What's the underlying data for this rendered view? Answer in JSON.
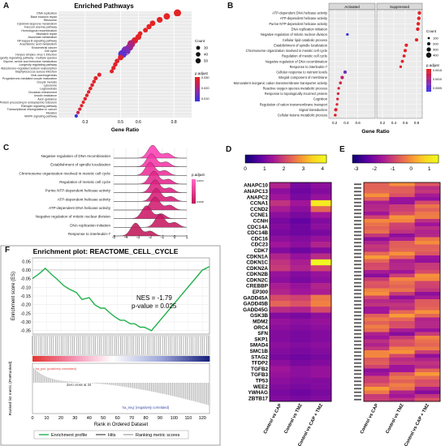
{
  "panels": {
    "A": {
      "letter": "A",
      "title": "Enriched Pathways",
      "xlabel": "Gene Ratio",
      "size_legend_title": "Count",
      "color_legend_title": "p.adjust"
    },
    "B": {
      "letter": "B",
      "header_left": "Activated",
      "header_right": "Suppressed",
      "xlabel": "Gene Ratio",
      "size_legend_title": "Count",
      "color_legend_title": "p.adjust"
    },
    "C": {
      "letter": "C",
      "color_legend_title": "p.adjust"
    },
    "D": {
      "letter": "D"
    },
    "E": {
      "letter": "E"
    },
    "F": {
      "letter": "F",
      "title": "Enrichment plot: REACTOME_CELL_CYCLE",
      "ylabel_top": "Enrichment score (ES)",
      "ylabel_bottom": "Ranked list metric (PreRanked)",
      "xlabel": "Rank in Ordered Dataset",
      "nes": "NES = -1.79",
      "pvalue": "p-value = 0.025",
      "pos_label": "'na_pos' (positively correlated)",
      "neg_label": "'na_neg' (negatively correlated)",
      "zero_cross": "Zero cross at 34",
      "legend": [
        "Enrichment profile",
        "Hits",
        "Ranking metric scores"
      ]
    }
  },
  "chart_data": [
    {
      "panel": "A",
      "type": "scatter",
      "title": "Enriched Pathways",
      "xlabel": "Gene Ratio",
      "xticks": [
        0.3,
        0.5,
        0.6,
        0.8
      ],
      "xlim": [
        0.15,
        0.9
      ],
      "categories": [
        "DNA replication",
        "Base excision repair",
        "Ribosome",
        "Cytokinin-isoprene metabolism",
        "Fanconi anemia pathway",
        "Homologous recombination",
        "Mismatch repair",
        "Ascorbate metabolism",
        "NF-kappa B signaling pathway",
        "Arachidonic acid metabolism",
        "Endometrial cancer",
        "Cell cycle",
        "Herpes simplex virus 1 infection",
        "Longevity regulating pathway - multiple species",
        "Glycine, serine and threonine metabolism",
        "Longevity regulating pathway",
        "Aldosterone-regulated sodium reabsorption",
        "Staphylococcus aureus infection",
        "Viral carcinogenesis",
        "Progesterone-mediated oocyte maturation",
        "Oocyte meiosis",
        "Lysosome",
        "Legionellosis",
        "Circadian entrainment",
        "Insulin resistance",
        "Axon guidance",
        "Protein processing in endoplasmic reticulum",
        "Estrogen signaling pathway",
        "Transcriptional misregulation in cancer",
        "Measles",
        "MAPK signaling pathway"
      ],
      "x": [
        0.82,
        0.76,
        0.72,
        0.68,
        0.66,
        0.64,
        0.61,
        0.6,
        0.58,
        0.56,
        0.55,
        0.53,
        0.51,
        0.5,
        0.48,
        0.47,
        0.46,
        0.45,
        0.38,
        0.36,
        0.35,
        0.34,
        0.33,
        0.32,
        0.31,
        0.3,
        0.29,
        0.28,
        0.27,
        0.26,
        0.25
      ],
      "count": [
        30,
        25,
        22,
        20,
        18,
        16,
        15,
        22,
        25,
        32,
        30,
        40,
        36,
        20,
        15,
        14,
        13,
        12,
        12,
        12,
        10,
        10,
        10,
        9,
        9,
        9,
        8,
        8,
        8,
        8,
        8
      ],
      "p_adjust": [
        0.001,
        0.001,
        0.001,
        0.001,
        0.001,
        0.001,
        0.001,
        0.001,
        0.002,
        0.012,
        0.015,
        0.02,
        0.025,
        0.002,
        0.002,
        0.002,
        0.002,
        0.002,
        0.002,
        0.002,
        0.002,
        0.002,
        0.002,
        0.002,
        0.002,
        0.002,
        0.002,
        0.002,
        0.002,
        0.008,
        0.03
      ],
      "size_legend": [
        30,
        40,
        50
      ],
      "color_legend": [
        "0.030",
        "0.020",
        "0.010"
      ]
    },
    {
      "panel": "B",
      "type": "scatter",
      "xlabel": "Gene Ratio",
      "facets": [
        "Activated",
        "Suppressed"
      ],
      "xticks_activated": [
        0.2,
        0.4,
        0.6
      ],
      "xticks_suppressed": [
        0.2,
        0.4,
        0.6,
        0.8
      ],
      "xlim": [
        0.1,
        0.9
      ],
      "categories": [
        "ATP-dependent DNA helicase activity",
        "ATP-dependent helicase activity",
        "Purine NTP-dependent helicase activity",
        "DNA replication initiation",
        "Negative regulation of mitotic nuclear division",
        "Cellular lipid catabolic process",
        "Establishment of spindle localization",
        "Chromosome organization involved in meiotic cell cycle",
        "Regulation of meiotic cell cycle",
        "Negative regulation of DNA recombination",
        "Response to interleukin-7",
        "Cellular response to nutrient levels",
        "Integral component of membrane",
        "Monovalent inorganic cation transmembrane transporter activity",
        "Reactive oxygen species metabolic process",
        "Response to topologically incorrect protein",
        "Cognition",
        "Regulation of cation transmembrane transport",
        "Signal transduction",
        "Cellular ketone metabolic process"
      ],
      "facet": [
        "Suppressed",
        "Suppressed",
        "Suppressed",
        "Suppressed",
        "Activated",
        "Suppressed",
        "Suppressed",
        "Suppressed",
        "Suppressed",
        "Suppressed",
        "Suppressed",
        "Activated",
        "Activated",
        "Activated",
        "Activated",
        "Activated",
        "Activated",
        "Activated",
        "Activated",
        "Activated"
      ],
      "x": [
        0.85,
        0.84,
        0.83,
        0.82,
        0.42,
        0.8,
        0.62,
        0.6,
        0.58,
        0.55,
        0.52,
        0.38,
        0.33,
        0.3,
        0.27,
        0.26,
        0.25,
        0.24,
        0.22,
        0.21
      ],
      "count": [
        100,
        100,
        100,
        100,
        60,
        90,
        90,
        90,
        80,
        80,
        60,
        90,
        90,
        70,
        60,
        60,
        60,
        60,
        90,
        70
      ],
      "p_adjust": [
        0.001,
        0.001,
        0.001,
        0.002,
        0.03,
        0.001,
        0.001,
        0.001,
        0.002,
        0.002,
        0.003,
        0.022,
        0.01,
        0.005,
        0.004,
        0.004,
        0.003,
        0.003,
        0.002,
        0.002
      ],
      "size_legend": [
        100,
        200,
        300,
        400
      ],
      "color_legend": [
        "0.0015",
        "0.0010",
        "0.0005"
      ]
    },
    {
      "panel": "C",
      "type": "area",
      "categories": [
        "Negative regulation of DNA recombination",
        "Establishment of spindle localization",
        "Chromosome organization involved in meiotic cell cycle",
        "Regulation of meiotic cell cycle",
        "Purine NTP-dependent helicase activity",
        "ATP-dependent helicase activity",
        "ATP-dependent DNA helicase activity",
        "Negative regulation of mitotic nuclear division",
        "DNA replication initiation",
        "Response to interleukin-7"
      ],
      "peak_x": [
        -1.8,
        -1.9,
        -2.0,
        -1.7,
        -1.6,
        -1.5,
        -1.6,
        -2.3,
        -1.2,
        -3.2
      ],
      "xticks": [
        -5,
        -4,
        -3,
        -2,
        -1,
        0,
        1
      ],
      "xlim": [
        -5,
        1
      ],
      "color_legend": [
        "0.0074",
        "0.0018"
      ]
    },
    {
      "panel": "D",
      "type": "heatmap",
      "columns": [
        "Control vs CAP",
        "Control vs TMZ",
        "Control vs CAP + TMZ"
      ],
      "colorbar_ticks": [
        0,
        1,
        2,
        3,
        4
      ],
      "colorbar_range": [
        0,
        4.2
      ],
      "rows": [
        "ANAPC10",
        "ANAPC13",
        "ANAPC2",
        "CCNA1",
        "CCND2",
        "CCNE1",
        "CCNH",
        "CDC14A",
        "CDC14B",
        "CDC16",
        "CDC23",
        "CDK7",
        "CDKN1A",
        "CDKN1C",
        "CDKN2A",
        "CDKN2B",
        "CDKN2C",
        "CREBBP",
        "EP300",
        "GADD45A",
        "GADD45B",
        "GADD45G",
        "GSK3B",
        "MDM2",
        "ORC4",
        "SFN",
        "SKP1",
        "SMAD4",
        "SMC1B",
        "STAG2",
        "TFDP2",
        "TGFB2",
        "TGFB3",
        "TP53",
        "WEE2",
        "YWHAG",
        "ZBTB17"
      ],
      "values": [
        [
          1.6,
          1.0,
          1.2
        ],
        [
          1.2,
          0.9,
          1.1
        ],
        [
          1.4,
          1.0,
          1.3
        ],
        [
          1.8,
          1.4,
          3.9
        ],
        [
          1.5,
          1.2,
          2.4
        ],
        [
          1.2,
          1.0,
          1.4
        ],
        [
          1.0,
          0.8,
          1.1
        ],
        [
          1.1,
          0.9,
          1.2
        ],
        [
          1.0,
          0.9,
          1.0
        ],
        [
          1.2,
          1.1,
          1.3
        ],
        [
          1.4,
          1.2,
          1.6
        ],
        [
          1.1,
          0.9,
          1.1
        ],
        [
          1.6,
          1.3,
          1.7
        ],
        [
          1.8,
          1.5,
          4.2
        ],
        [
          1.9,
          1.6,
          2.0
        ],
        [
          1.3,
          1.1,
          1.3
        ],
        [
          1.2,
          1.0,
          1.2
        ],
        [
          1.5,
          1.3,
          1.6
        ],
        [
          1.6,
          1.4,
          1.5
        ],
        [
          2.1,
          2.0,
          2.6
        ],
        [
          2.4,
          2.2,
          2.7
        ],
        [
          1.7,
          1.6,
          2.1
        ],
        [
          1.1,
          1.0,
          1.2
        ],
        [
          1.3,
          1.2,
          1.3
        ],
        [
          1.2,
          1.1,
          1.2
        ],
        [
          1.1,
          1.0,
          1.1
        ],
        [
          1.1,
          1.0,
          1.1
        ],
        [
          1.2,
          1.1,
          1.2
        ],
        [
          1.1,
          1.0,
          1.1
        ],
        [
          1.0,
          0.9,
          1.0
        ],
        [
          1.2,
          1.0,
          1.1
        ],
        [
          1.4,
          1.2,
          1.3
        ],
        [
          1.3,
          1.2,
          1.3
        ],
        [
          1.2,
          1.1,
          1.1
        ],
        [
          1.1,
          1.0,
          1.1
        ],
        [
          1.0,
          0.9,
          1.0
        ],
        [
          1.1,
          1.0,
          1.1
        ]
      ]
    },
    {
      "panel": "E",
      "type": "heatmap",
      "columns": [
        "Control vs CAP",
        "Control vs TMZ",
        "Control vs CAP + TMZ"
      ],
      "colorbar_ticks": [
        -3,
        -2,
        -1,
        0,
        1
      ],
      "colorbar_range": [
        -3.2,
        1.5
      ],
      "rows": 60
    },
    {
      "panel": "F",
      "type": "line",
      "title": "Enrichment plot: REACTOME_CELL_CYCLE",
      "xlabel": "Rank in Ordered Dataset",
      "ylabel": "Enrichment score (ES)",
      "xticks": [
        0,
        10,
        20,
        30,
        40,
        50,
        60,
        70,
        80,
        90,
        100,
        110,
        120
      ],
      "yticks": [
        0.05,
        0.0,
        -0.05,
        -0.1,
        -0.15,
        -0.2,
        -0.25,
        -0.3,
        -0.35
      ],
      "xlim": [
        0,
        125
      ],
      "ylim": [
        -0.37,
        0.07
      ],
      "es_x": [
        0,
        5,
        9,
        14,
        17,
        22,
        26,
        31,
        35,
        40,
        44,
        48,
        51,
        55,
        58,
        62,
        65,
        69,
        72,
        76,
        79,
        84,
        120,
        125
      ],
      "es_y": [
        -0.05,
        -0.02,
        0.01,
        -0.03,
        -0.05,
        -0.09,
        -0.11,
        -0.13,
        -0.17,
        -0.16,
        -0.2,
        -0.22,
        -0.22,
        -0.25,
        -0.27,
        -0.29,
        -0.29,
        -0.31,
        -0.31,
        -0.33,
        -0.33,
        -0.35,
        0.0,
        0.02
      ],
      "nes": -1.79,
      "p_value": 0.025,
      "zero_cross": 34
    }
  ]
}
